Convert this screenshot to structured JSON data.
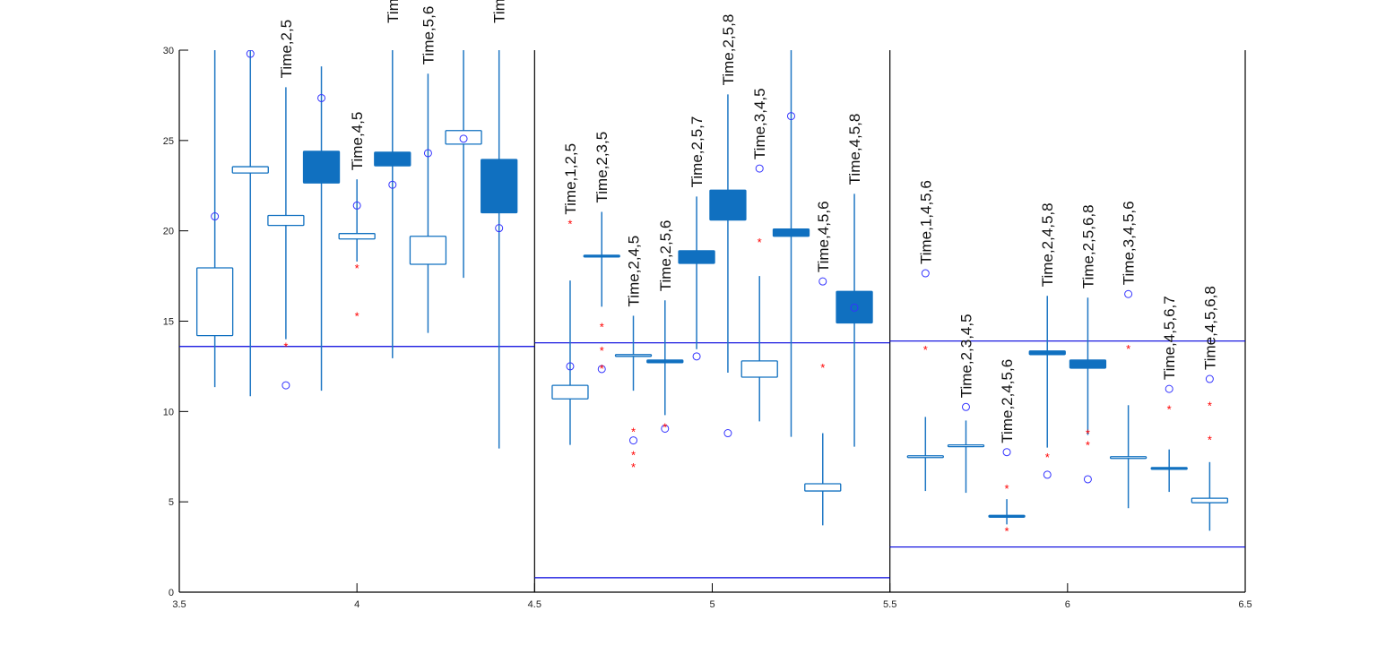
{
  "chart_data": {
    "type": "boxplot",
    "xlim": [
      3.5,
      6.5
    ],
    "ylim": [
      0,
      30
    ],
    "xticks": [
      "3.5",
      "4",
      "4.5",
      "5",
      "5.5",
      "6",
      "6.5"
    ],
    "yticks": [
      "0",
      "5",
      "10",
      "15",
      "20",
      "25",
      "30"
    ],
    "group_dividers": [
      4.5,
      5.5,
      6.5
    ],
    "colors": {
      "box": "#1070c0",
      "whisker": "#1f77c4",
      "circle": "#3333ff",
      "star": "#ff0000",
      "reference_line": "#0000dd",
      "axis": "#000000"
    },
    "reference_lines": [
      {
        "x_range": [
          3.5,
          4.5
        ],
        "y": 13.6
      },
      {
        "x_range": [
          4.5,
          5.5
        ],
        "y": 13.8
      },
      {
        "x_range": [
          4.5,
          5.5
        ],
        "y": 0.8
      },
      {
        "x_range": [
          5.5,
          6.5
        ],
        "y": 13.9
      },
      {
        "x_range": [
          5.5,
          6.5
        ],
        "y": 2.5
      }
    ],
    "boxes": [
      {
        "x": 3.6,
        "label": "",
        "filled": false,
        "whisker_low": 11.35,
        "q1": 14.2,
        "q3": 17.95,
        "whisker_high": 31,
        "circles": [
          20.8
        ],
        "stars": []
      },
      {
        "x": 3.7,
        "label": "",
        "filled": false,
        "whisker_low": 10.85,
        "q1": 23.2,
        "q3": 23.55,
        "whisker_high": 31,
        "circles": [
          29.8
        ],
        "stars": []
      },
      {
        "x": 3.8,
        "label": "Time,2,5",
        "filled": false,
        "whisker_low": 14.0,
        "q1": 20.3,
        "q3": 20.85,
        "whisker_high": 27.95,
        "circles": [
          11.45
        ],
        "stars": [
          13.6
        ]
      },
      {
        "x": 3.9,
        "label": "",
        "filled": true,
        "whisker_low": 11.15,
        "q1": 22.65,
        "q3": 24.4,
        "whisker_high": 29.1,
        "circles": [
          27.35
        ],
        "stars": []
      },
      {
        "x": 4.0,
        "label": "Time,4,5",
        "filled": false,
        "whisker_low": 18.3,
        "q1": 19.55,
        "q3": 19.85,
        "whisker_high": 22.85,
        "circles": [
          21.4
        ],
        "stars": [
          17.95,
          15.3
        ]
      },
      {
        "x": 4.1,
        "label": "Time",
        "filled": true,
        "whisker_low": 12.95,
        "q1": 23.6,
        "q3": 24.35,
        "whisker_high": 31,
        "circles": [
          22.55
        ],
        "stars": []
      },
      {
        "x": 4.2,
        "label": "Time,5,6",
        "filled": false,
        "whisker_low": 14.35,
        "q1": 18.15,
        "q3": 19.7,
        "whisker_high": 28.7,
        "circles": [
          24.3
        ],
        "stars": []
      },
      {
        "x": 4.3,
        "label": "",
        "filled": false,
        "whisker_low": 17.4,
        "q1": 24.8,
        "q3": 25.55,
        "whisker_high": 31,
        "circles": [
          25.1
        ],
        "stars": []
      },
      {
        "x": 4.4,
        "label": "Tim",
        "filled": true,
        "whisker_low": 7.95,
        "q1": 21.0,
        "q3": 23.95,
        "whisker_high": 31,
        "circles": [
          20.15
        ],
        "stars": []
      },
      {
        "x": 4.6,
        "label": "Time,1,2,5",
        "filled": false,
        "whisker_low": 8.15,
        "q1": 10.7,
        "q3": 11.45,
        "whisker_high": 17.25,
        "circles": [
          12.5
        ],
        "stars": [
          20.4
        ]
      },
      {
        "x": 4.689,
        "label": "Time,2,3,5",
        "filled": true,
        "whisker_low": 15.8,
        "q1": 18.55,
        "q3": 18.65,
        "whisker_high": 21.05,
        "circles": [
          12.35
        ],
        "stars": [
          14.7,
          13.4,
          12.4
        ]
      },
      {
        "x": 4.778,
        "label": "Time,2,4,5",
        "filled": false,
        "whisker_low": 11.15,
        "q1": 13.05,
        "q3": 13.15,
        "whisker_high": 15.3,
        "circles": [
          8.4
        ],
        "stars": [
          8.9,
          7.6,
          6.95
        ]
      },
      {
        "x": 4.867,
        "label": "Time,2,5,6",
        "filled": true,
        "whisker_low": 9.8,
        "q1": 12.7,
        "q3": 12.85,
        "whisker_high": 16.15,
        "circles": [
          9.05
        ],
        "stars": [
          9.15
        ]
      },
      {
        "x": 4.956,
        "label": "Time,2,5,7",
        "filled": true,
        "whisker_low": 13.45,
        "q1": 18.2,
        "q3": 18.9,
        "whisker_high": 21.9,
        "circles": [
          13.05
        ],
        "stars": []
      },
      {
        "x": 5.044,
        "label": "Time,2,5,8",
        "filled": true,
        "whisker_low": 12.15,
        "q1": 20.6,
        "q3": 22.25,
        "whisker_high": 27.55,
        "circles": [
          8.8
        ],
        "stars": []
      },
      {
        "x": 5.133,
        "label": "Time,3,4,5",
        "filled": false,
        "whisker_low": 9.45,
        "q1": 11.9,
        "q3": 12.8,
        "whisker_high": 17.5,
        "circles": [
          23.45
        ],
        "stars": [
          19.4
        ]
      },
      {
        "x": 5.222,
        "label": "",
        "filled": true,
        "whisker_low": 8.6,
        "q1": 19.7,
        "q3": 20.1,
        "whisker_high": 31,
        "circles": [
          26.35
        ],
        "stars": []
      },
      {
        "x": 5.311,
        "label": "Time,4,5,6",
        "filled": false,
        "whisker_low": 3.7,
        "q1": 5.6,
        "q3": 6.0,
        "whisker_high": 8.8,
        "circles": [
          17.2
        ],
        "stars": [
          12.45
        ]
      },
      {
        "x": 5.4,
        "label": "Time,4,5,8",
        "filled": true,
        "whisker_low": 8.05,
        "q1": 14.9,
        "q3": 16.65,
        "whisker_high": 22.05,
        "circles": [
          15.75
        ],
        "stars": []
      },
      {
        "x": 5.6,
        "label": "Time,1,4,5,6",
        "filled": false,
        "whisker_low": 5.6,
        "q1": 7.45,
        "q3": 7.55,
        "whisker_high": 9.7,
        "circles": [
          17.65
        ],
        "stars": [
          13.45
        ]
      },
      {
        "x": 5.714,
        "label": "Time,2,3,4,5",
        "filled": false,
        "whisker_low": 5.5,
        "q1": 8.1,
        "q3": 8.15,
        "whisker_high": 9.5,
        "circles": [
          10.25
        ],
        "stars": []
      },
      {
        "x": 5.829,
        "label": "Time,2,4,5,6",
        "filled": true,
        "whisker_low": 3.75,
        "q1": 4.2,
        "q3": 4.25,
        "whisker_high": 5.15,
        "circles": [
          7.75
        ],
        "stars": [
          5.75,
          3.4
        ]
      },
      {
        "x": 5.943,
        "label": "Time,2,4,5,8",
        "filled": true,
        "whisker_low": 8.0,
        "q1": 13.15,
        "q3": 13.35,
        "whisker_high": 16.4,
        "circles": [
          6.5
        ],
        "stars": [
          7.5
        ]
      },
      {
        "x": 6.057,
        "label": "Time,2,5,6,8",
        "filled": true,
        "whisker_low": 8.7,
        "q1": 12.4,
        "q3": 12.85,
        "whisker_high": 16.3,
        "circles": [
          6.25
        ],
        "stars": [
          8.8,
          8.15
        ]
      },
      {
        "x": 6.171,
        "label": "Time,3,4,5,6",
        "filled": false,
        "whisker_low": 4.65,
        "q1": 7.45,
        "q3": 7.5,
        "whisker_high": 10.35,
        "circles": [
          16.5
        ],
        "stars": [
          13.5
        ]
      },
      {
        "x": 6.286,
        "label": "Time,4,5,6,7",
        "filled": true,
        "whisker_low": 5.55,
        "q1": 6.8,
        "q3": 6.9,
        "whisker_high": 7.9,
        "circles": [
          11.25
        ],
        "stars": [
          10.15
        ]
      },
      {
        "x": 6.4,
        "label": "Time,4,5,6,8",
        "filled": false,
        "whisker_low": 3.4,
        "q1": 4.95,
        "q3": 5.2,
        "whisker_high": 7.2,
        "circles": [
          11.8
        ],
        "stars": [
          10.35,
          8.45
        ]
      }
    ]
  }
}
